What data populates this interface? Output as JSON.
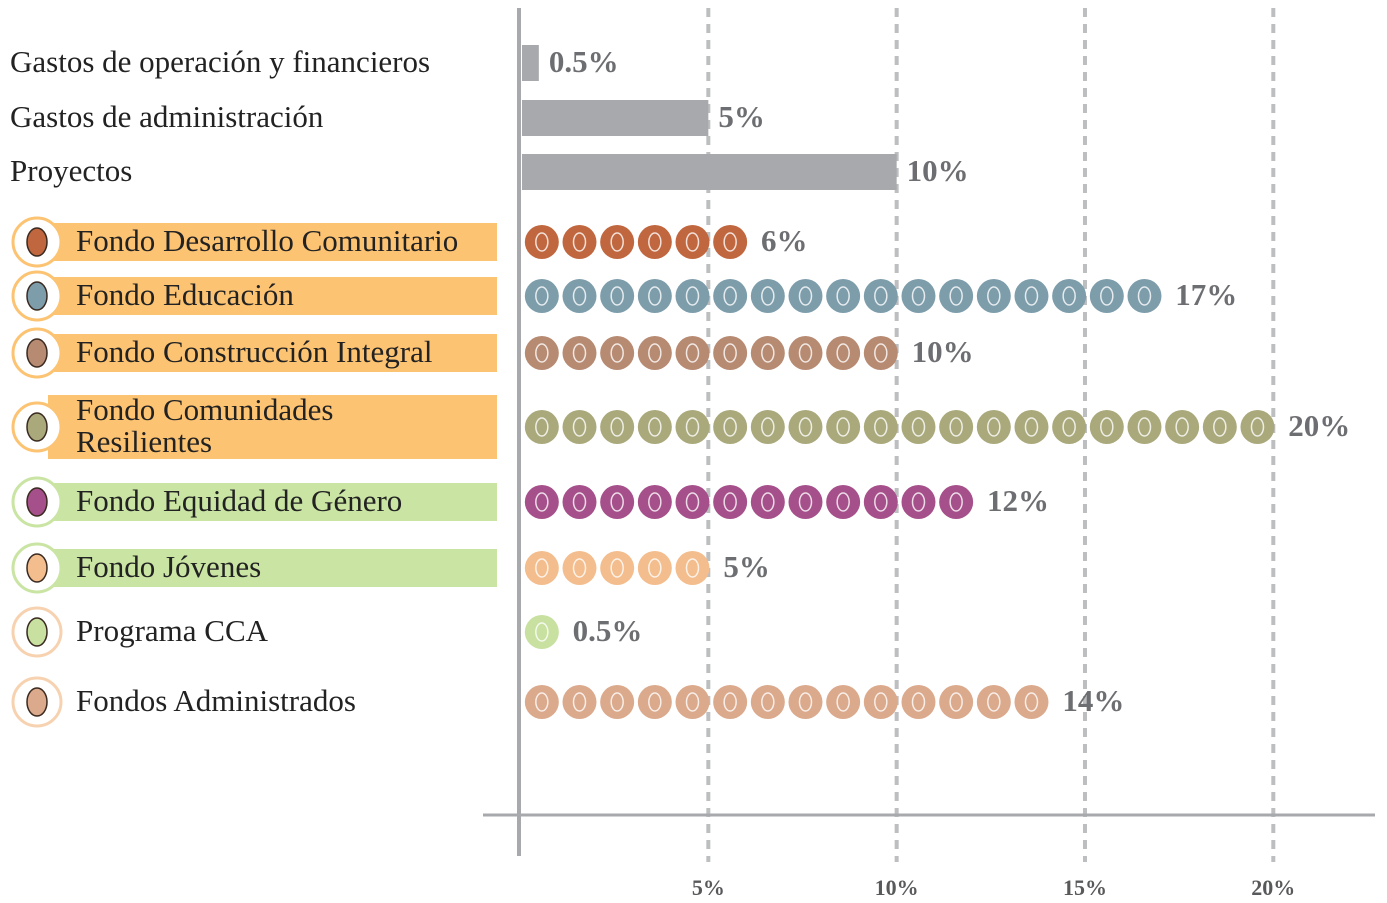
{
  "chart_data": {
    "type": "pictogram-bar",
    "categories": [
      "Gastos de operación y financieros",
      "Gastos de administración",
      "Proyectos",
      "Fondo Desarrollo Comunitario",
      "Fondo Educación",
      "Fondo Construcción Integral",
      "Fondo Comunidades\nResilientes",
      "Fondo Equidad de Género",
      "Fondo Jóvenes",
      "Programa CCA",
      "Fondos Administrados"
    ],
    "values": [
      0.5,
      5,
      10,
      6,
      17,
      10,
      20,
      12,
      5,
      0.5,
      14
    ],
    "value_labels": [
      "0.5%",
      "5%",
      "10%",
      "6%",
      "17%",
      "10%",
      "20%",
      "12%",
      "5%",
      "0.5%",
      "14%"
    ],
    "colors": [
      "#a7a9ac",
      "#a7a9ac",
      "#a7a9ac",
      "#c0673f",
      "#7d9dab",
      "#b78a72",
      "#aaa97c",
      "#a5508a",
      "#f3bd8d",
      "#c8e0a0",
      "#dba98c"
    ],
    "label_bg": [
      null,
      null,
      null,
      "#fcc372",
      "#fcc372",
      "#fcc372",
      "#fcc372",
      "#c9e4a3",
      "#c9e4a3",
      null,
      null
    ],
    "xlim": [
      0,
      22.7
    ],
    "xticks": [
      {
        "value": 5,
        "label": "5%"
      },
      {
        "value": 10,
        "label": "10%"
      },
      {
        "value": 15,
        "label": "15%"
      },
      {
        "value": 20,
        "label": "20%"
      }
    ],
    "grid": true
  }
}
